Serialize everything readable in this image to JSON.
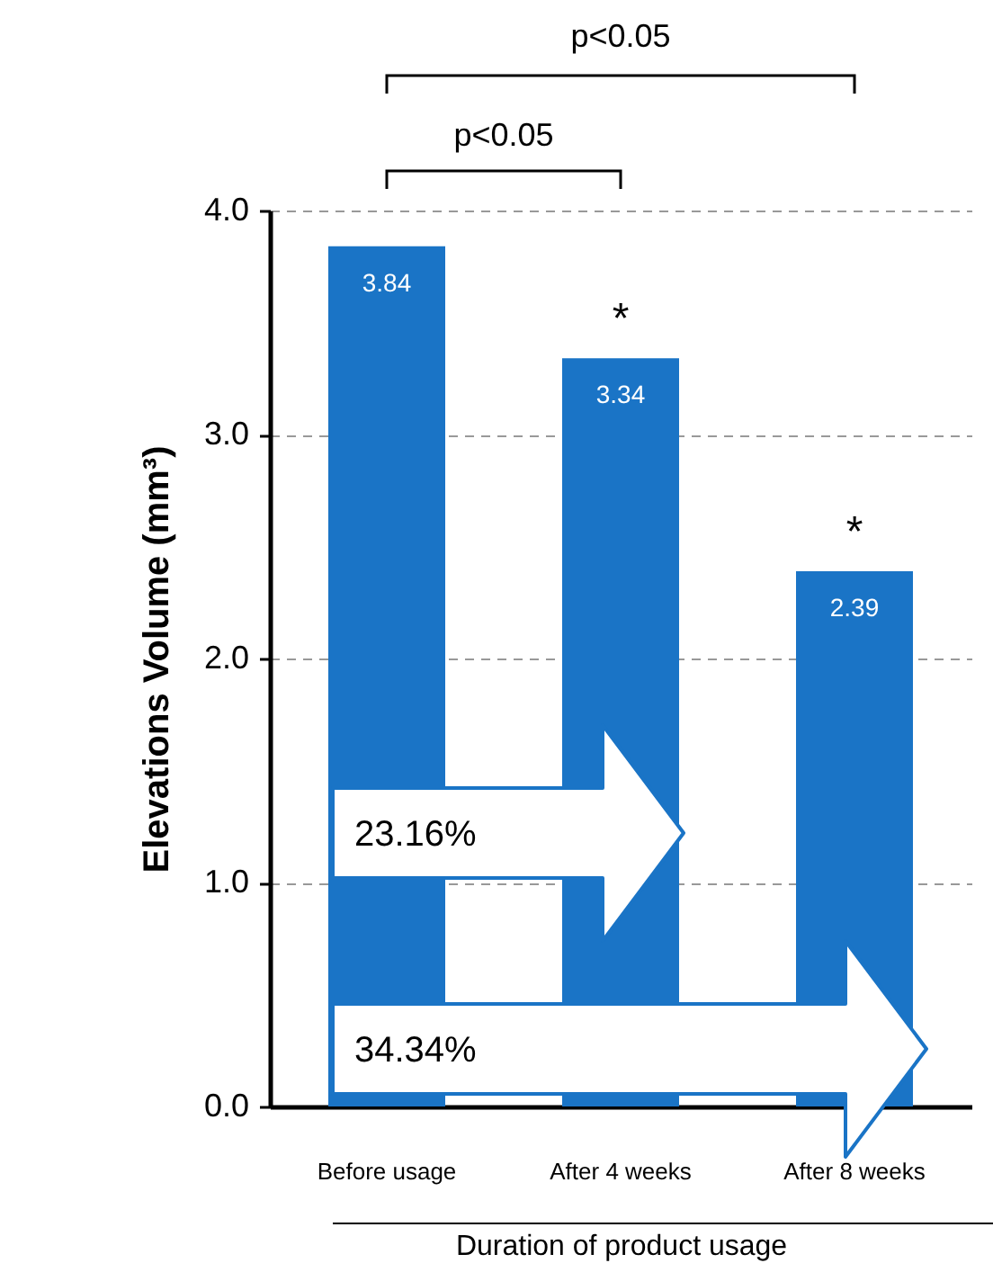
{
  "chart_data": {
    "type": "bar",
    "ylabel": "Elevations Volume (mm³)",
    "xlabel": "Duration of product usage",
    "categories": [
      "Before usage",
      "After 4 weeks",
      "After 8 weeks"
    ],
    "values": [
      3.84,
      3.34,
      2.39
    ],
    "color": "#1a74c6",
    "data_labels": true,
    "ylim": [
      0,
      4
    ],
    "yticks": [
      {
        "value": 0,
        "label": "0.0"
      },
      {
        "value": 1,
        "label": "1.0"
      },
      {
        "value": 2,
        "label": "2.0"
      },
      {
        "value": 3,
        "label": "3.0"
      },
      {
        "value": 4,
        "label": "4.0"
      }
    ],
    "grid": "y",
    "annotations": [
      "p<0.05",
      "p<0.05",
      {
        "text": "*",
        "x": "After 4 weeks",
        "y": 3.34
      },
      {
        "text": "*",
        "x": "After 8 weeks",
        "y": 2.39
      },
      "23.16%",
      "34.34%"
    ]
  }
}
